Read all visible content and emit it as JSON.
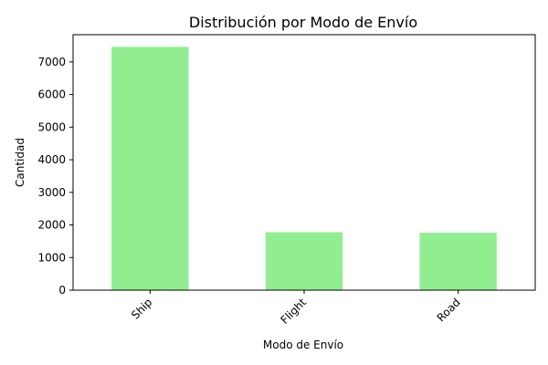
{
  "chart_data": {
    "type": "bar",
    "title": "Distribución por Modo de Envío",
    "xlabel": "Modo de Envío",
    "ylabel": "Cantidad",
    "categories": [
      "Ship",
      "Flight",
      "Road"
    ],
    "values": [
      7462,
      1777,
      1760
    ],
    "ylim": [
      0,
      7835
    ],
    "yticks": [
      0,
      1000,
      2000,
      3000,
      4000,
      5000,
      6000,
      7000
    ],
    "grid": false,
    "bar_color": "#90ee90"
  }
}
